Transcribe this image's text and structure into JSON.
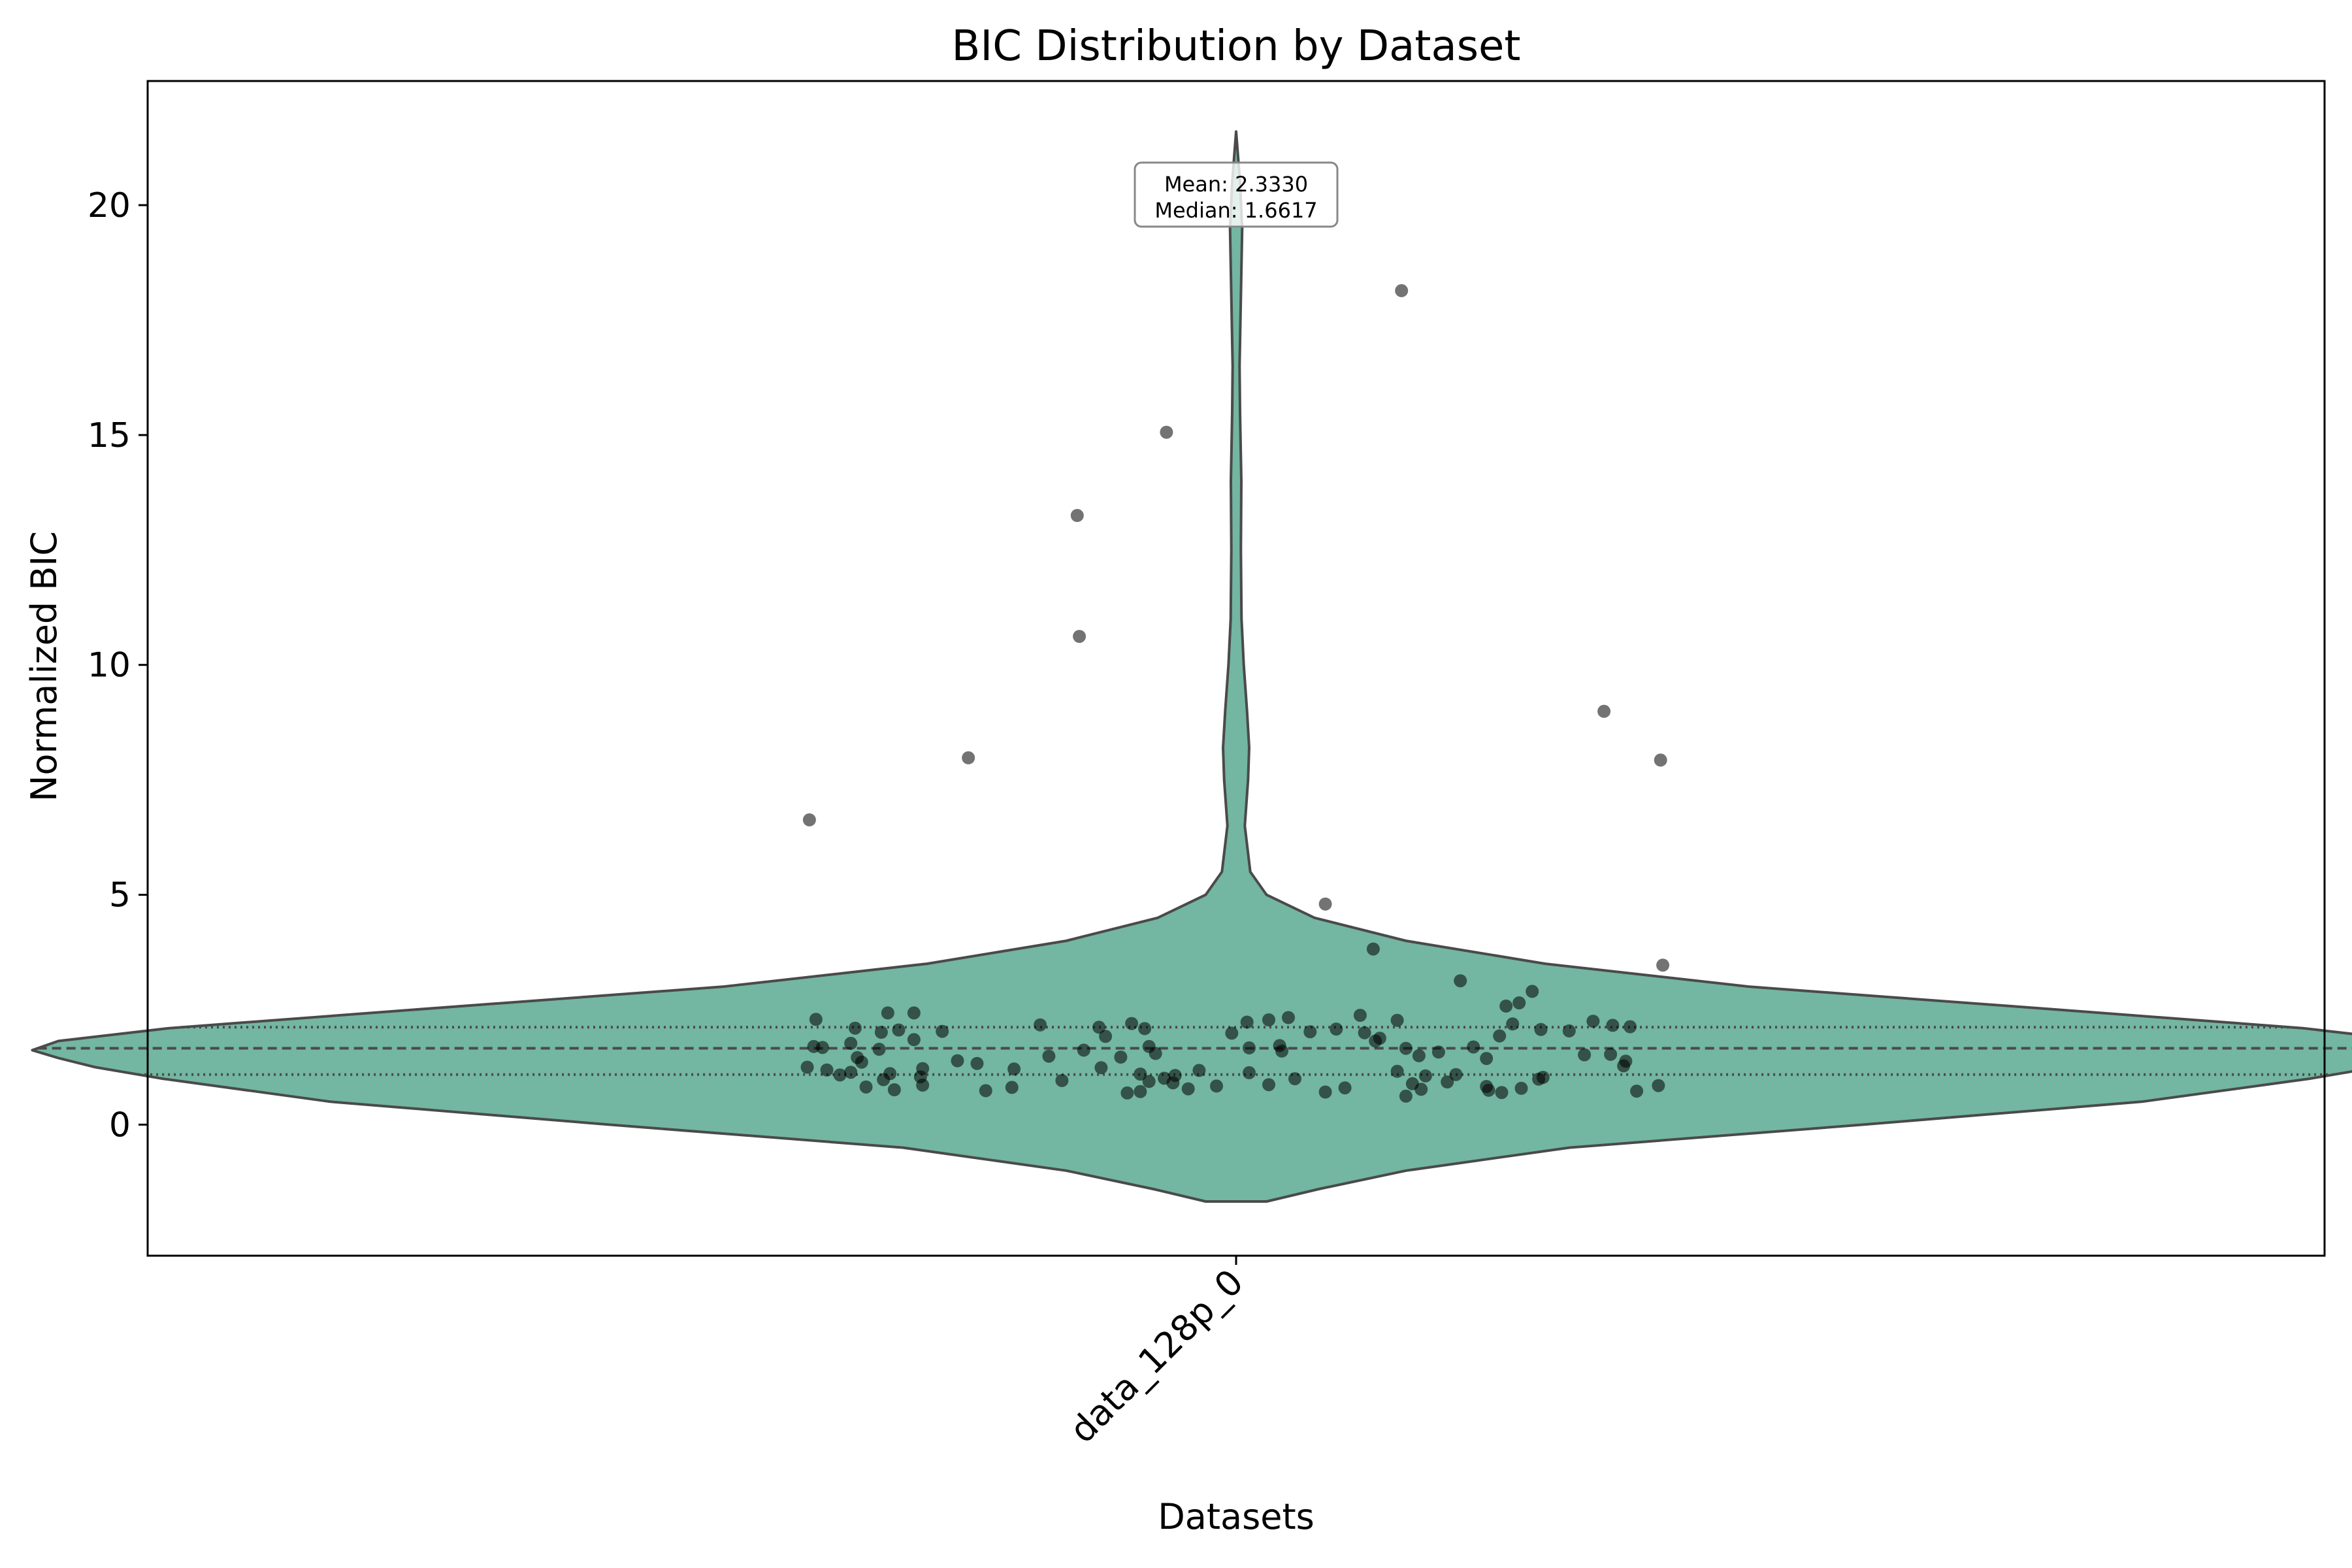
{
  "chart_data": {
    "type": "violin",
    "title": "BIC Distribution by Dataset",
    "xlabel": "Datasets",
    "ylabel": "Normalized BIC",
    "categories": [
      "data_128p_0"
    ],
    "ylim": [
      -2.85,
      22.7
    ],
    "yticks": [
      0,
      5,
      10,
      15,
      20
    ],
    "ytick_labels": [
      "0",
      "5",
      "10",
      "15",
      "20"
    ],
    "grid": false,
    "colors": {
      "violin_fill": "#73b6a1",
      "violin_edge": "#4a4a4a",
      "points": "#000000"
    },
    "quartiles": {
      "q1": 1.09,
      "median": 1.6617,
      "q3": 2.12
    },
    "annotation": {
      "mean_label": "Mean: 2.3330",
      "median_label": "Median: 1.6617"
    },
    "violin_extent": {
      "min": -1.67,
      "max": 21.6
    },
    "violin_profile": [
      {
        "y": -1.67,
        "w": 0.014
      },
      {
        "y": -1.4,
        "w": 0.038
      },
      {
        "y": -1.0,
        "w": 0.078
      },
      {
        "y": -0.5,
        "w": 0.153
      },
      {
        "y": 0.0,
        "w": 0.288
      },
      {
        "y": 0.5,
        "w": 0.416
      },
      {
        "y": 1.0,
        "w": 0.493
      },
      {
        "y": 1.25,
        "w": 0.524
      },
      {
        "y": 1.45,
        "w": 0.541
      },
      {
        "y": 1.62,
        "w": 0.553
      },
      {
        "y": 1.82,
        "w": 0.541
      },
      {
        "y": 2.1,
        "w": 0.49
      },
      {
        "y": 2.5,
        "w": 0.378
      },
      {
        "y": 3.0,
        "w": 0.236
      },
      {
        "y": 3.5,
        "w": 0.142
      },
      {
        "y": 4.0,
        "w": 0.078
      },
      {
        "y": 4.5,
        "w": 0.036
      },
      {
        "y": 5.0,
        "w": 0.014
      },
      {
        "y": 5.5,
        "w": 0.0065
      },
      {
        "y": 6.5,
        "w": 0.004
      },
      {
        "y": 7.5,
        "w": 0.0055
      },
      {
        "y": 8.2,
        "w": 0.006
      },
      {
        "y": 9.0,
        "w": 0.005
      },
      {
        "y": 10.0,
        "w": 0.0035
      },
      {
        "y": 11.0,
        "w": 0.0025
      },
      {
        "y": 12.5,
        "w": 0.0022
      },
      {
        "y": 14.0,
        "w": 0.0024
      },
      {
        "y": 15.5,
        "w": 0.0018
      },
      {
        "y": 16.5,
        "w": 0.0016
      },
      {
        "y": 18.0,
        "w": 0.0022
      },
      {
        "y": 19.5,
        "w": 0.0028
      },
      {
        "y": 20.5,
        "w": 0.0018
      },
      {
        "y": 21.6,
        "w": 0.0
      }
    ],
    "points": [
      {
        "x": -0.196,
        "y": 6.63
      },
      {
        "x": -0.123,
        "y": 7.98
      },
      {
        "x": -0.073,
        "y": 13.25
      },
      {
        "x": -0.072,
        "y": 10.62
      },
      {
        "x": -0.032,
        "y": 15.06
      },
      {
        "x": 0.076,
        "y": 18.14
      },
      {
        "x": 0.169,
        "y": 8.99
      },
      {
        "x": 0.195,
        "y": 7.93
      },
      {
        "x": 0.041,
        "y": 4.8
      },
      {
        "x": 0.063,
        "y": 3.82
      },
      {
        "x": 0.196,
        "y": 3.47
      },
      {
        "x": 0.103,
        "y": 3.13
      },
      {
        "x": 0.136,
        "y": 2.9
      },
      {
        "x": 0.13,
        "y": 2.65
      },
      {
        "x": 0.124,
        "y": 2.58
      },
      {
        "x": -0.16,
        "y": 2.43
      },
      {
        "x": -0.148,
        "y": 2.43
      },
      {
        "x": 0.057,
        "y": 2.38
      },
      {
        "x": 0.024,
        "y": 2.33
      },
      {
        "x": -0.193,
        "y": 2.29
      },
      {
        "x": 0.015,
        "y": 2.28
      },
      {
        "x": 0.074,
        "y": 2.27
      },
      {
        "x": 0.164,
        "y": 2.25
      },
      {
        "x": 0.005,
        "y": 2.23
      },
      {
        "x": -0.048,
        "y": 2.2
      },
      {
        "x": 0.127,
        "y": 2.19
      },
      {
        "x": -0.09,
        "y": 2.17
      },
      {
        "x": 0.173,
        "y": 2.16
      },
      {
        "x": 0.181,
        "y": 2.13
      },
      {
        "x": -0.063,
        "y": 2.12
      },
      {
        "x": -0.175,
        "y": 2.1
      },
      {
        "x": -0.042,
        "y": 2.09
      },
      {
        "x": 0.046,
        "y": 2.08
      },
      {
        "x": 0.14,
        "y": 2.07
      },
      {
        "x": -0.155,
        "y": 2.06
      },
      {
        "x": 0.153,
        "y": 2.04
      },
      {
        "x": -0.135,
        "y": 2.03
      },
      {
        "x": 0.034,
        "y": 2.02
      },
      {
        "x": -0.163,
        "y": 2.01
      },
      {
        "x": 0.059,
        "y": 2.0
      },
      {
        "x": -0.002,
        "y": 1.99
      },
      {
        "x": 0.121,
        "y": 1.93
      },
      {
        "x": -0.06,
        "y": 1.92
      },
      {
        "x": 0.066,
        "y": 1.88
      },
      {
        "x": -0.148,
        "y": 1.85
      },
      {
        "x": 0.064,
        "y": 1.82
      },
      {
        "x": -0.177,
        "y": 1.77
      },
      {
        "x": 0.02,
        "y": 1.72
      },
      {
        "x": -0.194,
        "y": 1.7
      },
      {
        "x": -0.04,
        "y": 1.7
      },
      {
        "x": 0.109,
        "y": 1.69
      },
      {
        "x": -0.19,
        "y": 1.68
      },
      {
        "x": 0.006,
        "y": 1.67
      },
      {
        "x": 0.078,
        "y": 1.66
      },
      {
        "x": -0.164,
        "y": 1.64
      },
      {
        "x": -0.07,
        "y": 1.62
      },
      {
        "x": 0.021,
        "y": 1.6
      },
      {
        "x": 0.093,
        "y": 1.58
      },
      {
        "x": -0.037,
        "y": 1.55
      },
      {
        "x": 0.172,
        "y": 1.53
      },
      {
        "x": 0.16,
        "y": 1.52
      },
      {
        "x": 0.084,
        "y": 1.5
      },
      {
        "x": -0.086,
        "y": 1.49
      },
      {
        "x": -0.053,
        "y": 1.47
      },
      {
        "x": -0.174,
        "y": 1.46
      },
      {
        "x": 0.115,
        "y": 1.44
      },
      {
        "x": -0.128,
        "y": 1.39
      },
      {
        "x": 0.179,
        "y": 1.38
      },
      {
        "x": -0.172,
        "y": 1.36
      },
      {
        "x": -0.119,
        "y": 1.33
      },
      {
        "x": 0.178,
        "y": 1.28
      },
      {
        "x": -0.197,
        "y": 1.25
      },
      {
        "x": -0.062,
        "y": 1.24
      },
      {
        "x": -0.144,
        "y": 1.22
      },
      {
        "x": -0.102,
        "y": 1.21
      },
      {
        "x": -0.188,
        "y": 1.19
      },
      {
        "x": -0.017,
        "y": 1.18
      },
      {
        "x": 0.074,
        "y": 1.16
      },
      {
        "x": -0.177,
        "y": 1.14
      },
      {
        "x": 0.006,
        "y": 1.13
      },
      {
        "x": -0.159,
        "y": 1.11
      },
      {
        "x": -0.044,
        "y": 1.1
      },
      {
        "x": 0.101,
        "y": 1.09
      },
      {
        "x": -0.182,
        "y": 1.08
      },
      {
        "x": -0.028,
        "y": 1.07
      },
      {
        "x": 0.087,
        "y": 1.06
      },
      {
        "x": -0.145,
        "y": 1.04
      },
      {
        "x": 0.141,
        "y": 1.03
      },
      {
        "x": -0.033,
        "y": 1.01
      },
      {
        "x": 0.027,
        "y": 1.0
      },
      {
        "x": 0.139,
        "y": 0.99
      },
      {
        "x": -0.162,
        "y": 0.98
      },
      {
        "x": -0.08,
        "y": 0.96
      },
      {
        "x": -0.04,
        "y": 0.94
      },
      {
        "x": 0.097,
        "y": 0.93
      },
      {
        "x": -0.029,
        "y": 0.91
      },
      {
        "x": 0.081,
        "y": 0.89
      },
      {
        "x": 0.015,
        "y": 0.87
      },
      {
        "x": -0.144,
        "y": 0.86
      },
      {
        "x": 0.194,
        "y": 0.85
      },
      {
        "x": -0.009,
        "y": 0.84
      },
      {
        "x": 0.115,
        "y": 0.83
      },
      {
        "x": -0.17,
        "y": 0.82
      },
      {
        "x": -0.103,
        "y": 0.81
      },
      {
        "x": 0.05,
        "y": 0.8
      },
      {
        "x": 0.131,
        "y": 0.79
      },
      {
        "x": -0.022,
        "y": 0.78
      },
      {
        "x": 0.085,
        "y": 0.77
      },
      {
        "x": -0.157,
        "y": 0.76
      },
      {
        "x": 0.116,
        "y": 0.75
      },
      {
        "x": -0.115,
        "y": 0.74
      },
      {
        "x": 0.184,
        "y": 0.73
      },
      {
        "x": -0.044,
        "y": 0.72
      },
      {
        "x": 0.041,
        "y": 0.71
      },
      {
        "x": 0.122,
        "y": 0.7
      },
      {
        "x": -0.05,
        "y": 0.69
      },
      {
        "x": 0.078,
        "y": 0.62
      }
    ]
  }
}
